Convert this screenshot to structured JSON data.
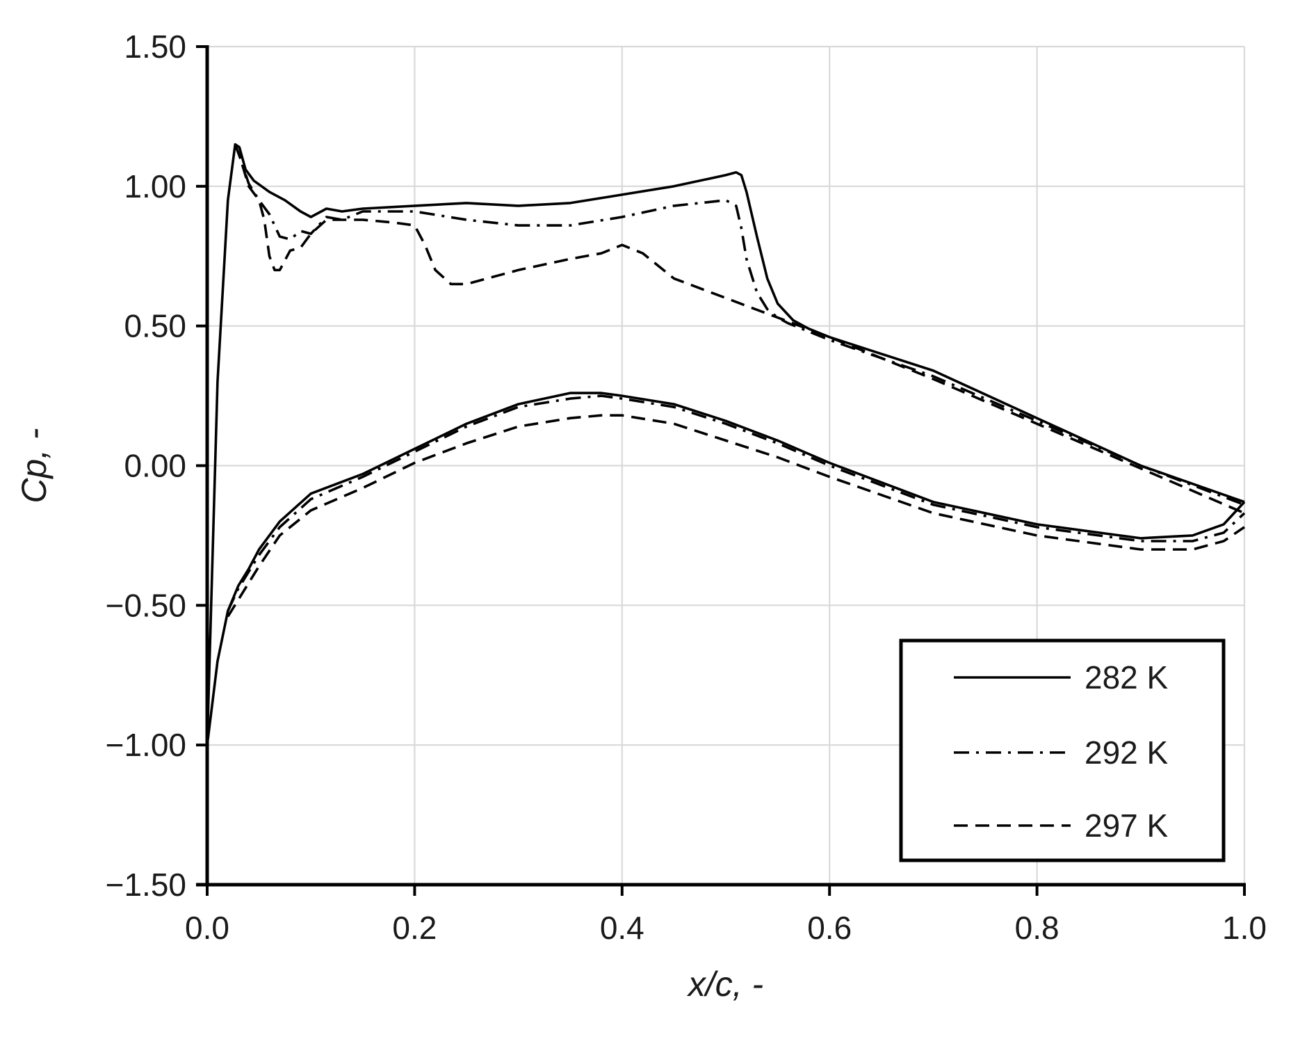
{
  "chart_data": {
    "type": "line",
    "xlabel": "x/c, -",
    "ylabel": "Cp, -",
    "xlim": [
      0.0,
      1.0
    ],
    "ylim": [
      -1.5,
      1.5
    ],
    "xticks": [
      0.0,
      0.2,
      0.4,
      0.6,
      0.8,
      1.0
    ],
    "xtick_labels": [
      "0.0",
      "0.2",
      "0.4",
      "0.6",
      "0.8",
      "1.0"
    ],
    "yticks": [
      -1.5,
      -1.0,
      -0.5,
      0.0,
      0.5,
      1.0,
      1.5
    ],
    "ytick_labels": [
      "-1.50",
      "-1.00",
      "-0.50",
      "0.00",
      "0.50",
      "1.00",
      "1.50"
    ],
    "grid": true,
    "legend_position": "bottom-right",
    "series": [
      {
        "name": "282 K",
        "dash": "solid",
        "upper": {
          "x": [
            0.0,
            0.01,
            0.02,
            0.027,
            0.031,
            0.037,
            0.045,
            0.06,
            0.075,
            0.09,
            0.1,
            0.115,
            0.13,
            0.15,
            0.2,
            0.25,
            0.3,
            0.35,
            0.4,
            0.45,
            0.5,
            0.51,
            0.515,
            0.52,
            0.53,
            0.54,
            0.55,
            0.565,
            0.58,
            0.6,
            0.7,
            0.8,
            0.9,
            1.0
          ],
          "y": [
            -1.0,
            0.3,
            0.95,
            1.15,
            1.14,
            1.06,
            1.02,
            0.98,
            0.95,
            0.91,
            0.89,
            0.92,
            0.91,
            0.92,
            0.93,
            0.94,
            0.93,
            0.94,
            0.97,
            1.0,
            1.04,
            1.05,
            1.04,
            0.98,
            0.82,
            0.67,
            0.58,
            0.52,
            0.49,
            0.46,
            0.34,
            0.17,
            0.0,
            -0.13
          ]
        },
        "lower": {
          "x": [
            0.0,
            0.005,
            0.01,
            0.02,
            0.03,
            0.04,
            0.05,
            0.07,
            0.1,
            0.15,
            0.2,
            0.25,
            0.3,
            0.35,
            0.38,
            0.4,
            0.45,
            0.5,
            0.55,
            0.6,
            0.7,
            0.8,
            0.9,
            0.95,
            0.98,
            1.0
          ],
          "y": [
            -1.0,
            -0.85,
            -0.7,
            -0.52,
            -0.43,
            -0.37,
            -0.3,
            -0.2,
            -0.1,
            -0.03,
            0.06,
            0.15,
            0.22,
            0.26,
            0.26,
            0.25,
            0.22,
            0.16,
            0.09,
            0.01,
            -0.13,
            -0.21,
            -0.26,
            -0.25,
            -0.21,
            -0.13
          ]
        }
      },
      {
        "name": "292 K",
        "dash": "dash-dot",
        "upper": {
          "x": [
            0.027,
            0.032,
            0.04,
            0.05,
            0.06,
            0.07,
            0.08,
            0.09,
            0.1,
            0.115,
            0.13,
            0.15,
            0.2,
            0.25,
            0.3,
            0.35,
            0.4,
            0.45,
            0.5,
            0.51,
            0.515,
            0.52,
            0.53,
            0.54,
            0.55,
            0.56,
            0.6,
            0.7,
            0.8,
            0.9,
            1.0
          ],
          "y": [
            1.15,
            1.1,
            1.01,
            0.95,
            0.9,
            0.82,
            0.81,
            0.84,
            0.83,
            0.89,
            0.88,
            0.91,
            0.91,
            0.88,
            0.86,
            0.86,
            0.89,
            0.93,
            0.95,
            0.93,
            0.85,
            0.74,
            0.62,
            0.56,
            0.53,
            0.51,
            0.45,
            0.32,
            0.16,
            0.0,
            -0.14
          ]
        },
        "lower": {
          "x": [
            0.02,
            0.03,
            0.05,
            0.07,
            0.1,
            0.15,
            0.2,
            0.25,
            0.3,
            0.35,
            0.38,
            0.4,
            0.45,
            0.5,
            0.55,
            0.6,
            0.7,
            0.8,
            0.9,
            0.95,
            0.98,
            1.0
          ],
          "y": [
            -0.52,
            -0.44,
            -0.32,
            -0.22,
            -0.12,
            -0.04,
            0.05,
            0.14,
            0.21,
            0.24,
            0.25,
            0.24,
            0.21,
            0.15,
            0.08,
            0.0,
            -0.14,
            -0.22,
            -0.27,
            -0.27,
            -0.24,
            -0.17
          ]
        }
      },
      {
        "name": "297 K",
        "dash": "dashed",
        "upper": {
          "x": [
            0.027,
            0.032,
            0.04,
            0.05,
            0.055,
            0.06,
            0.065,
            0.07,
            0.08,
            0.09,
            0.1,
            0.115,
            0.13,
            0.15,
            0.18,
            0.2,
            0.21,
            0.22,
            0.235,
            0.25,
            0.3,
            0.35,
            0.38,
            0.4,
            0.42,
            0.45,
            0.5,
            0.55,
            0.6,
            0.7,
            0.8,
            0.9,
            1.0
          ],
          "y": [
            1.15,
            1.1,
            1.0,
            0.95,
            0.88,
            0.75,
            0.7,
            0.7,
            0.77,
            0.78,
            0.83,
            0.88,
            0.88,
            0.88,
            0.87,
            0.86,
            0.79,
            0.7,
            0.65,
            0.65,
            0.7,
            0.74,
            0.76,
            0.79,
            0.76,
            0.67,
            0.6,
            0.53,
            0.46,
            0.31,
            0.15,
            -0.01,
            -0.17
          ]
        },
        "lower": {
          "x": [
            0.02,
            0.03,
            0.05,
            0.07,
            0.1,
            0.15,
            0.2,
            0.25,
            0.3,
            0.35,
            0.38,
            0.4,
            0.45,
            0.5,
            0.55,
            0.6,
            0.7,
            0.8,
            0.9,
            0.95,
            0.98,
            1.0
          ],
          "y": [
            -0.54,
            -0.48,
            -0.36,
            -0.25,
            -0.16,
            -0.08,
            0.01,
            0.08,
            0.14,
            0.17,
            0.18,
            0.18,
            0.15,
            0.09,
            0.03,
            -0.04,
            -0.17,
            -0.25,
            -0.3,
            -0.3,
            -0.27,
            -0.22
          ]
        }
      }
    ]
  }
}
